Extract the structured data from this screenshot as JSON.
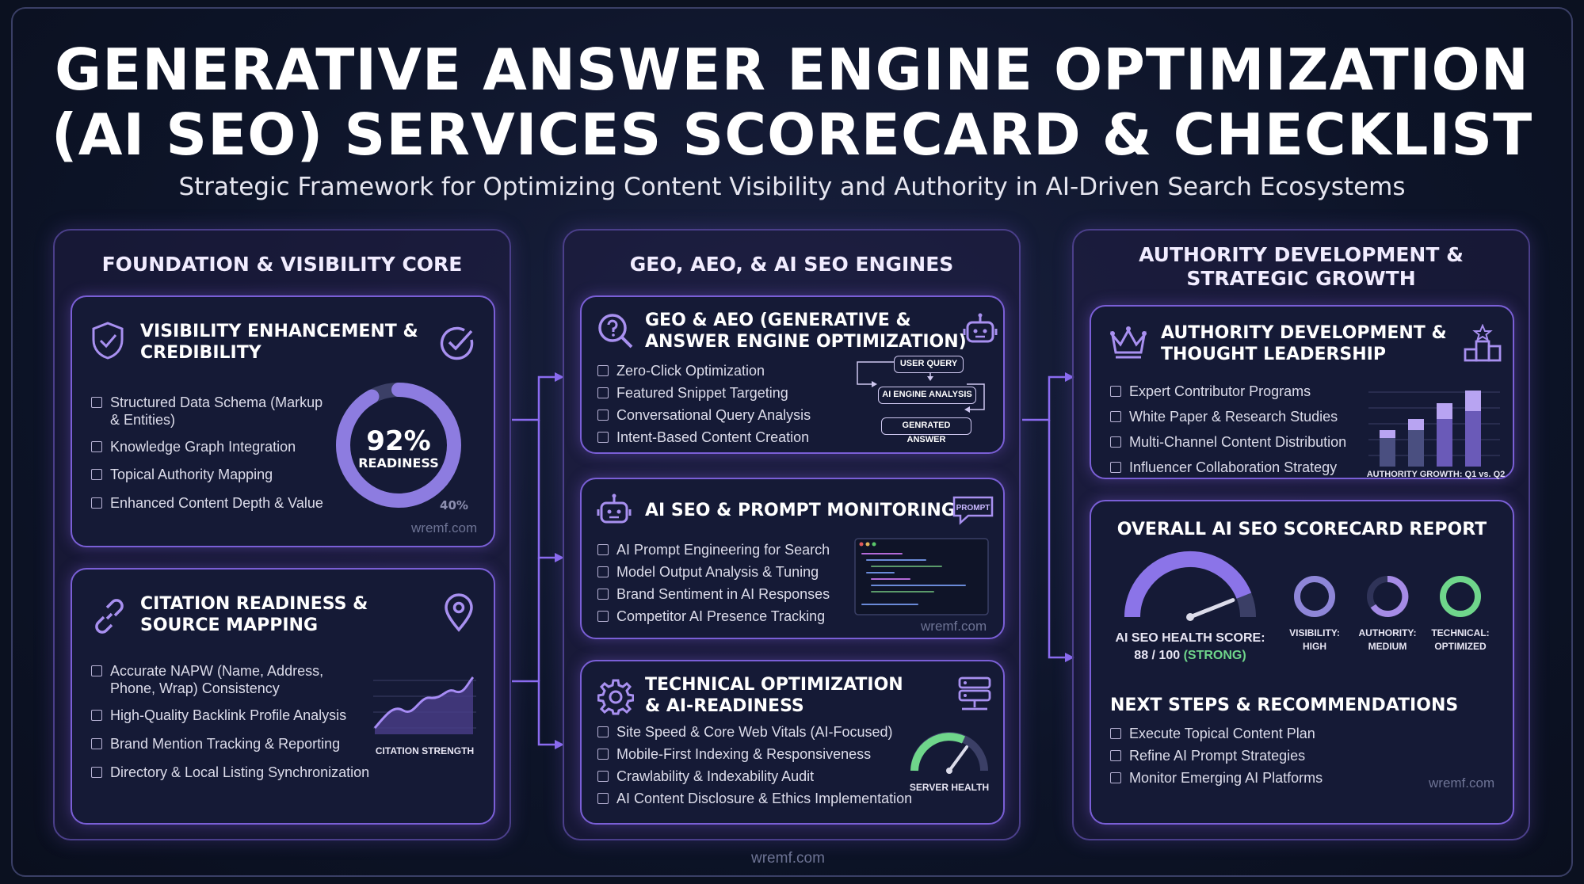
{
  "header": {
    "title_line1": "GENERATIVE ANSWER ENGINE OPTIMIZATION",
    "title_line2": "(AI SEO) SERVICES SCORECARD & CHECKLIST",
    "subtitle": "Strategic Framework for Optimizing Content Visibility and Authority in AI-Driven Search Ecosystems"
  },
  "columns": [
    {
      "heading": "FOUNDATION & VISIBILITY CORE"
    },
    {
      "heading": "GEO, AEO, & AI SEO ENGINES"
    },
    {
      "heading_line1": "AUTHORITY DEVELOPMENT &",
      "heading_line2": "STRATEGIC GROWTH"
    }
  ],
  "cards": {
    "visibility": {
      "title_line1": "VISIBILITY ENHANCEMENT &",
      "title_line2": "CREDIBILITY",
      "items": [
        "Structured Data Schema (Markup & Entities)",
        "Knowledge Graph Integration",
        "Topical Authority Mapping",
        "Enhanced Content Depth & Value"
      ],
      "gauge_value": "92%",
      "gauge_label": "READINESS",
      "gauge_secondary": "40%",
      "readiness_fraction": 0.92,
      "watermark": "wremf.com",
      "icons": [
        "shield-check-icon",
        "check-circle-icon"
      ]
    },
    "citation": {
      "title_line1": "CITATION READINESS &",
      "title_line2": "SOURCE MAPPING",
      "items": [
        "Accurate NAPW (Name, Address, Phone, Wrap) Consistency",
        "High-Quality Backlink Profile Analysis",
        "Brand Mention Tracking & Reporting",
        "Directory & Local Listing Synchronization"
      ],
      "chart_caption": "CITATION STRENGTH",
      "icons": [
        "link-icon",
        "location-pin-icon"
      ]
    },
    "geo": {
      "title_line1": "GEO & AEO (GENERATIVE &",
      "title_line2": "ANSWER ENGINE OPTIMIZATION)",
      "items": [
        "Zero-Click Optimization",
        "Featured Snippet Targeting",
        "Conversational Query Analysis",
        "Intent-Based Content Creation"
      ],
      "flow": [
        "USER QUERY",
        "AI ENGINE ANALYSIS",
        "GENRATED ANSWER"
      ],
      "icons": [
        "question-search-icon",
        "robot-icon"
      ]
    },
    "prompt": {
      "title": "AI SEO & PROMPT MONITORING",
      "badge": "PROMPT",
      "items": [
        "AI Prompt Engineering for Search",
        "Model Output Analysis & Tuning",
        "Brand Sentiment in AI Responses",
        "Competitor AI Presence Tracking"
      ],
      "watermark": "wremf.com",
      "icons": [
        "robot-icon",
        "chat-bubble-icon",
        "code-window-icon"
      ]
    },
    "technical": {
      "title_line1": "TECHNICAL OPTIMIZATION",
      "title_line2": "& AI-READINESS",
      "items": [
        "Site Speed & Core Web Vitals (AI-Focused)",
        "Mobile-First Indexing & Responsiveness",
        "Crawlability & Indexability Audit",
        "AI Content Disclosure & Ethics Implementation"
      ],
      "gauge_caption": "SERVER HEALTH",
      "icons": [
        "gear-icon",
        "server-icon"
      ]
    },
    "authority": {
      "title_line1": "AUTHORITY DEVELOPMENT &",
      "title_line2": "THOUGHT LEADERSHIP",
      "items": [
        "Expert Contributor Programs",
        "White Paper & Research Studies",
        "Multi-Channel Content Distribution",
        "Influencer Collaboration Strategy"
      ],
      "chart_caption": "AUTHORITY GROWTH: Q1 vs. Q2",
      "icons": [
        "crown-icon",
        "podium-icon"
      ]
    },
    "scorecard": {
      "title": "OVERALL AI SEO SCORECARD REPORT",
      "health_label": "AI SEO HEALTH SCORE:",
      "health_value": "88 / 100",
      "health_status": "(STRONG)",
      "health_score": 88,
      "rings": [
        {
          "label1": "VISIBILITY:",
          "label2": "HIGH",
          "color": "#8e86d8"
        },
        {
          "label1": "AUTHORITY:",
          "label2": "MEDIUM",
          "color": "#a58be6"
        },
        {
          "label1": "TECHNICAL:",
          "label2": "OPTIMIZED",
          "color": "#6fd68b"
        }
      ],
      "next_title": "NEXT STEPS & RECOMMENDATIONS",
      "next_items": [
        "Execute Topical Content Plan",
        "Refine AI Prompt Strategies",
        "Monitor Emerging AI Platforms"
      ],
      "watermark": "wremf.com"
    }
  },
  "footer": {
    "watermark": "wremf.com"
  },
  "colors": {
    "accent": "#8b6cf0",
    "green": "#6fd68b",
    "card_border": "#7a5fd6"
  }
}
